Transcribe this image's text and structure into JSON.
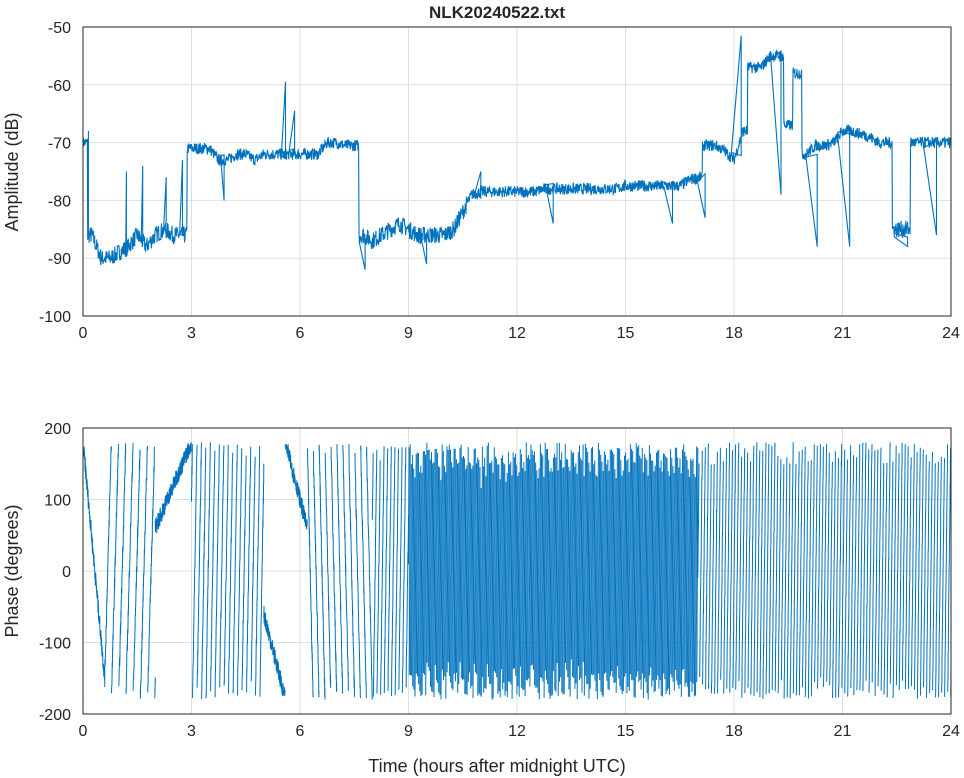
{
  "chart_data": [
    {
      "type": "line",
      "title": "NLK20240522.txt",
      "xlabel": "",
      "ylabel": "Amplitude (dB)",
      "xlim": [
        0,
        24
      ],
      "ylim": [
        -100,
        -50
      ],
      "xticks": [
        0,
        3,
        6,
        9,
        12,
        15,
        18,
        21,
        24
      ],
      "yticks": [
        -100,
        -90,
        -80,
        -70,
        -60,
        -50
      ],
      "grid": true,
      "color": "#0072BD",
      "x_step_hours": 0.25,
      "values": [
        -70,
        -86,
        -90,
        -90,
        -89,
        -88,
        -86,
        -88,
        -86,
        -85,
        -86,
        -86,
        -71,
        -71,
        -71,
        -73,
        -73,
        -72,
        -72,
        -73,
        -72,
        -72,
        -72,
        -72,
        -72,
        -72,
        -72,
        -70,
        -70,
        -70.5,
        -70.5,
        -86,
        -87,
        -86,
        -85,
        -84,
        -85,
        -86,
        -86,
        -86,
        -86,
        -85,
        -82,
        -79,
        -78.5,
        -78.5,
        -78.5,
        -78.5,
        -78.5,
        -78.5,
        -78.5,
        -78,
        -78,
        -78,
        -78,
        -78,
        -78,
        -78,
        -78,
        -78,
        -77.5,
        -77.5,
        -77.5,
        -77.5,
        -77.5,
        -77.5,
        -77.5,
        -76.5,
        -76,
        -70.5,
        -70.5,
        -71.5,
        -73,
        -68,
        -57,
        -57,
        -55,
        -55,
        -67,
        -58,
        -72,
        -70.5,
        -70.5,
        -70,
        -68,
        -68,
        -68.5,
        -69,
        -70,
        -70,
        -85,
        -85,
        -70,
        -70,
        -70,
        -70,
        -70
      ],
      "spikes": [
        [
          0.15,
          -68
        ],
        [
          1.2,
          -75
        ],
        [
          1.65,
          -74
        ],
        [
          2.3,
          -76
        ],
        [
          2.75,
          -73
        ],
        [
          3.9,
          -80
        ],
        [
          5.6,
          -59.5
        ],
        [
          5.85,
          -64.5
        ],
        [
          7.8,
          -92
        ],
        [
          9.5,
          -91
        ],
        [
          11,
          -75
        ],
        [
          13,
          -84
        ],
        [
          16.3,
          -84
        ],
        [
          17.2,
          -83
        ],
        [
          18.2,
          -51.5
        ],
        [
          19.3,
          -79
        ],
        [
          20.3,
          -88
        ],
        [
          21.2,
          -88
        ],
        [
          22.8,
          -88
        ],
        [
          23.6,
          -86
        ]
      ]
    },
    {
      "type": "line",
      "title": "",
      "xlabel": "Time (hours after midnight UTC)",
      "ylabel": "Phase (degrees)",
      "xlim": [
        0,
        24
      ],
      "ylim": [
        -200,
        200
      ],
      "xticks": [
        0,
        3,
        6,
        9,
        12,
        15,
        18,
        21,
        24
      ],
      "yticks": [
        -200,
        -100,
        0,
        100,
        200
      ],
      "grid": true,
      "color": "#0072BD",
      "wrap_range": [
        -180,
        180
      ],
      "drift_segments_deg_per_hour": [
        [
          0,
          0.6,
          -550,
          180
        ],
        [
          0.6,
          2.0,
          1800,
          -150
        ],
        [
          2.0,
          3.0,
          120,
          60
        ],
        [
          3.0,
          5.0,
          2900,
          100
        ],
        [
          5.0,
          6.2,
          -200,
          -60
        ],
        [
          6.2,
          8.0,
          -2200,
          180
        ],
        [
          8.0,
          9.0,
          3600,
          80
        ],
        [
          9.0,
          17.0,
          11000,
          0
        ],
        [
          17.0,
          24.0,
          4300,
          0
        ]
      ]
    }
  ]
}
